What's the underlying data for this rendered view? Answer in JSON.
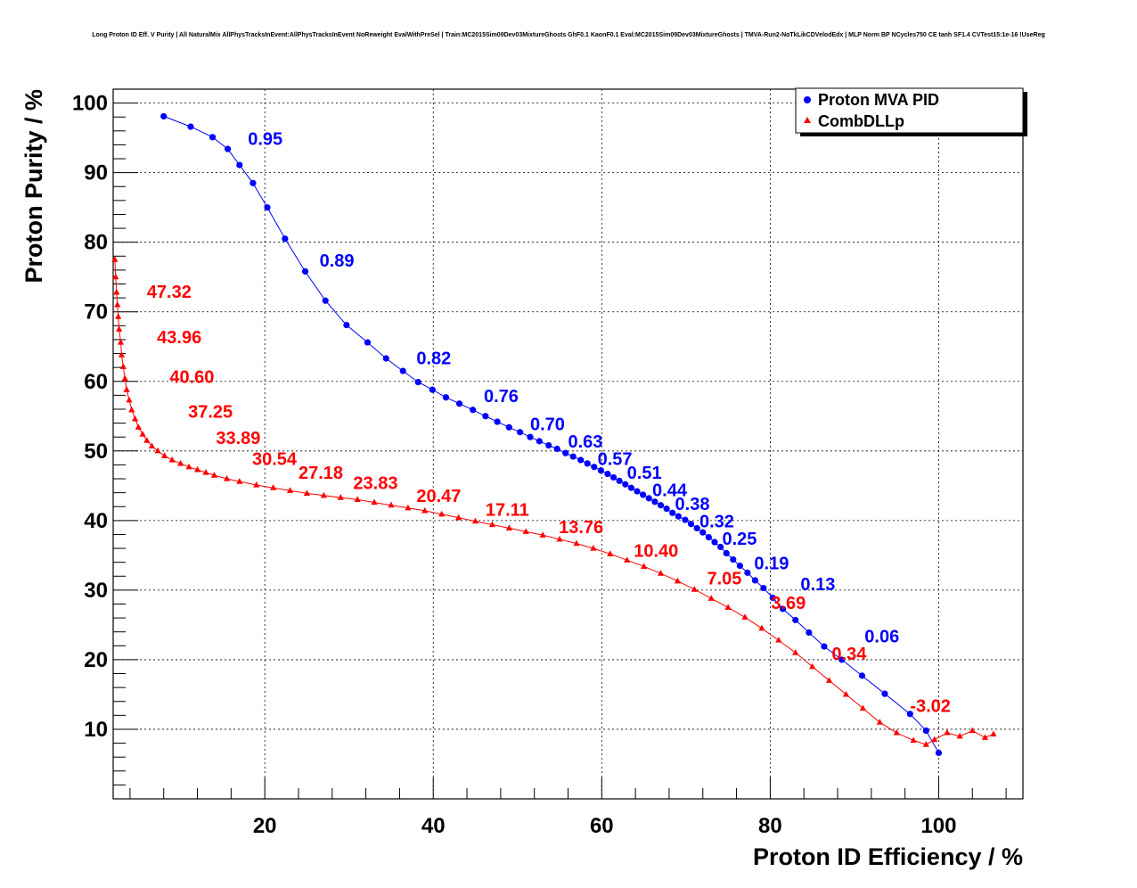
{
  "chart_data": {
    "type": "scatter",
    "title": "Long Proton ID Eff. V Purity | All NaturalMix AllPhysTracksInEvent:AllPhysTracksInEvent NoReweight EvalWithPreSel | Train:MC2015Sim09Dev03MixtureGhosts GhF0.1 KaonF0.1 Eval:MC2015Sim09Dev03MixtureGhosts | TMVA-Run2-NoTkLikCDVelodEdx | MLP Norm BP NCycles750 CE tanh SF1.4 CVTest15:1e-16 !UseReg",
    "xlabel": "Proton ID Efficiency / %",
    "ylabel": "Proton Purity / %",
    "xlim": [
      2,
      110
    ],
    "ylim": [
      0,
      102
    ],
    "xticks": [
      20,
      40,
      60,
      80,
      100
    ],
    "yticks": [
      10,
      20,
      30,
      40,
      50,
      60,
      70,
      80,
      90,
      100
    ],
    "grid": true,
    "legend_position": "top-right",
    "series": [
      {
        "name": "Proton MVA PID",
        "color": "#0000ff",
        "marker": "circle",
        "x": [
          8.0,
          11.2,
          13.8,
          15.6,
          17.0,
          18.6,
          20.3,
          22.4,
          24.8,
          27.2,
          29.7,
          32.2,
          34.4,
          36.4,
          38.2,
          39.9,
          41.5,
          43.1,
          44.7,
          46.2,
          47.6,
          49.0,
          50.3,
          51.5,
          52.6,
          53.7,
          54.7,
          55.7,
          56.6,
          57.5,
          58.3,
          59.1,
          59.9,
          60.7,
          61.4,
          62.1,
          62.8,
          63.5,
          64.2,
          64.9,
          65.6,
          66.3,
          67.0,
          67.7,
          68.4,
          69.1,
          69.9,
          70.6,
          71.3,
          72.0,
          72.7,
          73.4,
          74.1,
          74.8,
          75.6,
          76.4,
          77.3,
          78.2,
          79.2,
          80.3,
          81.5,
          83.0,
          84.6,
          86.4,
          88.5,
          90.9,
          93.6,
          96.6,
          98.5,
          100.0
        ],
        "y": [
          98.1,
          96.6,
          95.1,
          93.4,
          91.1,
          88.5,
          85.0,
          80.5,
          75.8,
          71.6,
          68.1,
          65.6,
          63.3,
          61.5,
          59.9,
          58.8,
          57.7,
          56.8,
          55.9,
          55.0,
          54.2,
          53.4,
          52.7,
          52.0,
          51.4,
          50.8,
          50.3,
          49.7,
          49.2,
          48.7,
          48.2,
          47.7,
          47.2,
          46.7,
          46.2,
          45.7,
          45.2,
          44.7,
          44.2,
          43.7,
          43.2,
          42.7,
          42.2,
          41.7,
          41.1,
          40.6,
          40.1,
          39.5,
          38.9,
          38.3,
          37.6,
          36.9,
          36.2,
          35.3,
          34.4,
          33.5,
          32.5,
          31.4,
          30.3,
          28.9,
          27.3,
          25.7,
          23.9,
          21.9,
          20.0,
          17.7,
          15.1,
          12.2,
          9.8,
          6.6
        ]
      },
      {
        "name": "CombDLLp",
        "color": "#ff0000",
        "marker": "triangle",
        "x": [
          2.2,
          2.3,
          2.4,
          2.5,
          2.6,
          2.7,
          2.9,
          3.0,
          3.2,
          3.4,
          3.6,
          3.9,
          4.2,
          4.6,
          5.0,
          5.5,
          6.0,
          6.6,
          7.3,
          8.1,
          9.0,
          10.0,
          11.0,
          12.0,
          13.0,
          14.0,
          15.5,
          17.0,
          19.0,
          21.0,
          23.0,
          25.0,
          27.0,
          29.0,
          31.0,
          33.0,
          35.0,
          37.0,
          39.0,
          41.0,
          43.0,
          45.0,
          47.0,
          49.0,
          51.0,
          53.0,
          55.0,
          57.0,
          59.0,
          61.0,
          63.0,
          65.0,
          67.0,
          69.0,
          71.0,
          73.0,
          75.0,
          77.0,
          79.0,
          81.0,
          83.0,
          85.0,
          87.0,
          89.0,
          91.0,
          93.0,
          95.0,
          97.0,
          98.5,
          99.5,
          101.0,
          102.5,
          104.0,
          105.5,
          106.5
        ],
        "y": [
          77.5,
          75.0,
          72.8,
          71.0,
          69.3,
          67.5,
          65.6,
          63.8,
          62.1,
          60.4,
          58.8,
          57.3,
          55.9,
          54.6,
          53.4,
          52.4,
          51.5,
          50.7,
          50.0,
          49.3,
          48.7,
          48.2,
          47.7,
          47.3,
          46.9,
          46.5,
          46.0,
          45.6,
          45.1,
          44.7,
          44.3,
          43.9,
          43.6,
          43.3,
          43.0,
          42.6,
          42.2,
          41.8,
          41.4,
          40.9,
          40.4,
          39.9,
          39.4,
          38.9,
          38.4,
          37.9,
          37.3,
          36.7,
          36.0,
          35.2,
          34.3,
          33.4,
          32.4,
          31.3,
          30.1,
          28.8,
          27.5,
          26.1,
          24.5,
          22.8,
          21.0,
          19.0,
          17.0,
          15.0,
          13.0,
          11.0,
          9.5,
          8.4,
          7.8,
          8.5,
          9.5,
          9.0,
          9.8,
          8.8,
          9.3
        ]
      }
    ],
    "annotations": [
      {
        "text": "0.95",
        "x": 18.0,
        "y": 94.0,
        "color": "#0000ff"
      },
      {
        "text": "0.89",
        "x": 26.5,
        "y": 76.5,
        "color": "#0000ff"
      },
      {
        "text": "0.82",
        "x": 38.0,
        "y": 62.5,
        "color": "#0000ff"
      },
      {
        "text": "0.76",
        "x": 46.0,
        "y": 57.0,
        "color": "#0000ff"
      },
      {
        "text": "0.70",
        "x": 51.5,
        "y": 53.0,
        "color": "#0000ff"
      },
      {
        "text": "0.63",
        "x": 56.0,
        "y": 50.5,
        "color": "#0000ff"
      },
      {
        "text": "0.57",
        "x": 59.5,
        "y": 48.0,
        "color": "#0000ff"
      },
      {
        "text": "0.51",
        "x": 63.0,
        "y": 46.0,
        "color": "#0000ff"
      },
      {
        "text": "0.44",
        "x": 66.0,
        "y": 43.5,
        "color": "#0000ff"
      },
      {
        "text": "0.38",
        "x": 68.7,
        "y": 41.5,
        "color": "#0000ff"
      },
      {
        "text": "0.32",
        "x": 71.6,
        "y": 39.0,
        "color": "#0000ff"
      },
      {
        "text": "0.25",
        "x": 74.3,
        "y": 36.5,
        "color": "#0000ff"
      },
      {
        "text": "0.19",
        "x": 78.1,
        "y": 33.0,
        "color": "#0000ff"
      },
      {
        "text": "0.13",
        "x": 83.6,
        "y": 30.0,
        "color": "#0000ff"
      },
      {
        "text": "0.06",
        "x": 91.2,
        "y": 22.5,
        "color": "#0000ff"
      },
      {
        "text": "47.32",
        "x": 6.0,
        "y": 72.0,
        "color": "#ff0000"
      },
      {
        "text": "43.96",
        "x": 7.2,
        "y": 65.5,
        "color": "#ff0000"
      },
      {
        "text": "40.60",
        "x": 8.7,
        "y": 59.8,
        "color": "#ff0000"
      },
      {
        "text": "37.25",
        "x": 10.9,
        "y": 54.8,
        "color": "#ff0000"
      },
      {
        "text": "33.89",
        "x": 14.2,
        "y": 51.0,
        "color": "#ff0000"
      },
      {
        "text": "30.54",
        "x": 18.5,
        "y": 48.0,
        "color": "#ff0000"
      },
      {
        "text": "27.18",
        "x": 24.0,
        "y": 46.0,
        "color": "#ff0000"
      },
      {
        "text": "23.83",
        "x": 30.5,
        "y": 44.5,
        "color": "#ff0000"
      },
      {
        "text": "20.47",
        "x": 38.0,
        "y": 42.7,
        "color": "#ff0000"
      },
      {
        "text": "17.11",
        "x": 46.2,
        "y": 40.7,
        "color": "#ff0000"
      },
      {
        "text": "13.76",
        "x": 54.9,
        "y": 38.2,
        "color": "#ff0000"
      },
      {
        "text": "10.40",
        "x": 63.8,
        "y": 34.8,
        "color": "#ff0000"
      },
      {
        "text": "7.05",
        "x": 72.5,
        "y": 30.8,
        "color": "#ff0000"
      },
      {
        "text": "3.69",
        "x": 80.1,
        "y": 27.3,
        "color": "#ff0000"
      },
      {
        "text": "0.34",
        "x": 87.3,
        "y": 20.0,
        "color": "#ff0000"
      },
      {
        "text": "-3.02",
        "x": 96.6,
        "y": 12.5,
        "color": "#ff0000"
      }
    ]
  }
}
